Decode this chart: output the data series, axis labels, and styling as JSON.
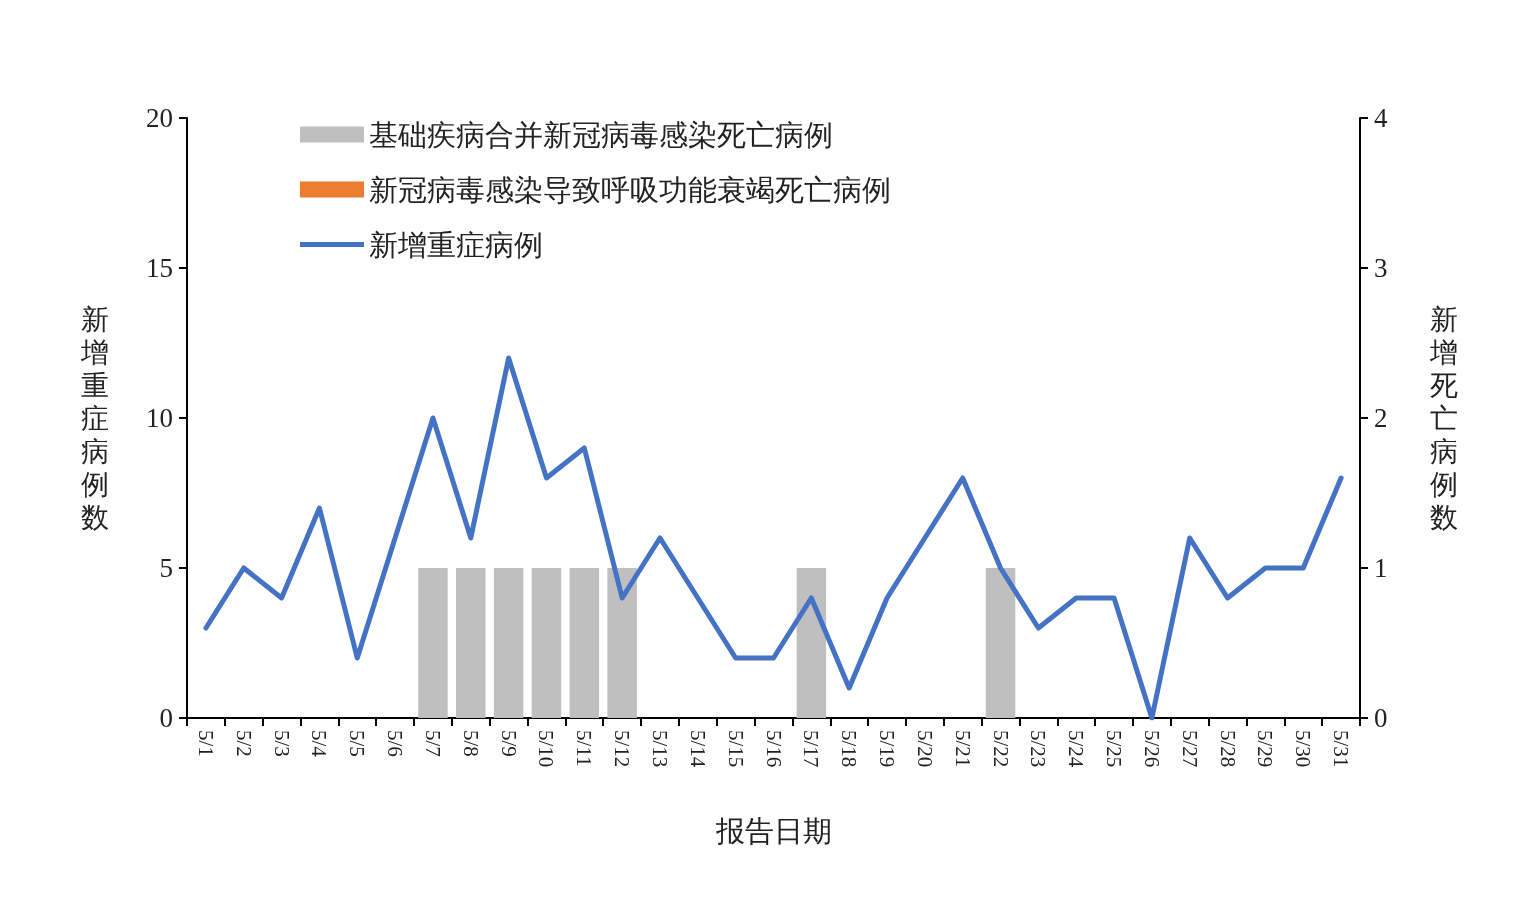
{
  "chart_data": {
    "type": "bar",
    "xlabel": "报告日期",
    "ylabel": "新增重症病例数",
    "y2label": "新增死亡病例数",
    "categories": [
      "5/1",
      "5/2",
      "5/3",
      "5/4",
      "5/5",
      "5/6",
      "5/7",
      "5/8",
      "5/9",
      "5/10",
      "5/11",
      "5/12",
      "5/13",
      "5/14",
      "5/15",
      "5/16",
      "5/17",
      "5/18",
      "5/19",
      "5/20",
      "5/21",
      "5/22",
      "5/23",
      "5/24",
      "5/25",
      "5/26",
      "5/27",
      "5/28",
      "5/29",
      "5/30",
      "5/31"
    ],
    "series": [
      {
        "name": "基础疾病合并新冠病毒感染死亡病例",
        "axis": "y2",
        "color": "#bfbfbf",
        "values": [
          0,
          0,
          0,
          0,
          0,
          0,
          1,
          1,
          1,
          1,
          1,
          1,
          0,
          0,
          0,
          0,
          1,
          0,
          0,
          0,
          0,
          1,
          0,
          0,
          0,
          0,
          0,
          0,
          0,
          0,
          0
        ]
      },
      {
        "name": "新冠病毒感染导致呼吸功能衰竭死亡病例",
        "axis": "y2",
        "color": "#ed7d31",
        "values": [
          0,
          0,
          0,
          0,
          0,
          0,
          0,
          0,
          0,
          0,
          0,
          0,
          0,
          0,
          0,
          0,
          0,
          0,
          0,
          0,
          0,
          0,
          0,
          0,
          0,
          0,
          0,
          0,
          0,
          0,
          0
        ]
      },
      {
        "name": "新增重症病例",
        "type": "line",
        "axis": "y",
        "color": "#4472c4",
        "values": [
          3,
          5,
          4,
          7,
          2,
          6,
          10,
          6,
          12,
          8,
          9,
          4,
          6,
          4,
          2,
          2,
          4,
          1,
          4,
          6,
          8,
          5,
          3,
          4,
          4,
          0,
          6,
          4,
          5,
          5,
          8
        ]
      }
    ],
    "stacked": true,
    "ylim": [
      0,
      20
    ],
    "yticks": [
      0,
      5,
      10,
      15,
      20
    ],
    "y2lim": [
      0,
      4
    ],
    "y2ticks": [
      0,
      1,
      2,
      3,
      4
    ],
    "grid": false,
    "legend": "top left",
    "marker": "none",
    "line_style": "solid"
  }
}
